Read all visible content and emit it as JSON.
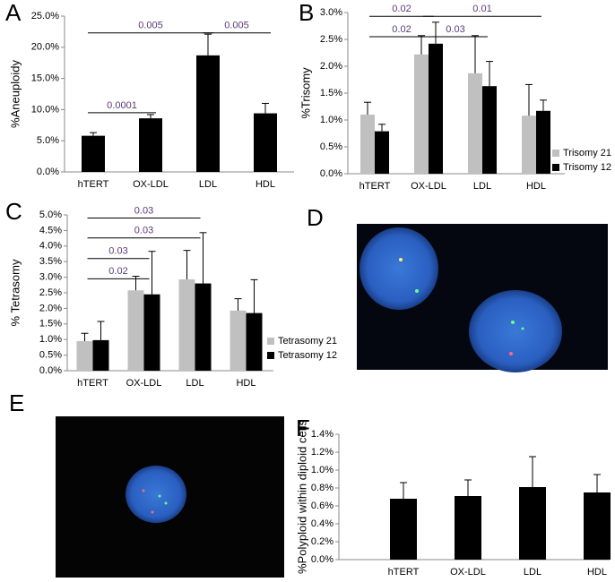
{
  "chart_data": [
    {
      "type": "bar",
      "panel": "A",
      "ylabel": "%Aneuploidy",
      "categories": [
        "hTERT",
        "OX-LDL",
        "LDL",
        "HDL"
      ],
      "series": [
        {
          "color": "#000000",
          "values": [
            5.8,
            8.6,
            18.7,
            9.4
          ],
          "errors": [
            0.5,
            0.6,
            3.4,
            1.6
          ]
        }
      ],
      "ylim": [
        0,
        25
      ],
      "yticks": [
        {
          "value": 0,
          "label": "0.0%"
        },
        {
          "value": 5,
          "label": "5.0%"
        },
        {
          "value": 10,
          "label": "10.0%"
        },
        {
          "value": 15,
          "label": "15.0%"
        },
        {
          "value": 20,
          "label": "20.0%"
        },
        {
          "value": 25,
          "label": "25.0%"
        }
      ],
      "annotations": [
        {
          "text": "0.0001",
          "from": "hTERT",
          "to": "OX-LDL",
          "y": 9.5
        },
        {
          "text": "0.005",
          "from": "hTERT",
          "to": "LDL",
          "y": 22.3
        },
        {
          "text": "0.005",
          "from": "LDL",
          "to": "HDL",
          "y": 22.3
        }
      ]
    },
    {
      "type": "bar",
      "panel": "B",
      "ylabel": "%Trisomy",
      "categories": [
        "hTERT",
        "OX-LDL",
        "LDL",
        "HDL"
      ],
      "series": [
        {
          "name": "Trisomy 21",
          "color": "#c0c0c0",
          "values": [
            1.1,
            2.22,
            1.87,
            1.08
          ],
          "errors": [
            0.23,
            0.35,
            0.7,
            0.58
          ]
        },
        {
          "name": "Trisomy 12",
          "color": "#000000",
          "values": [
            0.79,
            2.42,
            1.63,
            1.17
          ],
          "errors": [
            0.13,
            0.4,
            0.46,
            0.2
          ]
        }
      ],
      "ylim": [
        0,
        3
      ],
      "yticks": [
        {
          "value": 0,
          "label": "0.0%"
        },
        {
          "value": 0.5,
          "label": "0.5%"
        },
        {
          "value": 1,
          "label": "1.0%"
        },
        {
          "value": 1.5,
          "label": "1.5%"
        },
        {
          "value": 2,
          "label": "2.0%"
        },
        {
          "value": 2.5,
          "label": "2.5%"
        },
        {
          "value": 3,
          "label": "3.0%"
        }
      ],
      "legend": "lower right",
      "annotations": [
        {
          "text": "0.02",
          "from": "hTERT",
          "to": "OX-LDL",
          "y": 2.93
        },
        {
          "text": "0.01",
          "from": "OX-LDL",
          "to": "HDL",
          "y": 2.93
        },
        {
          "text": "0.02",
          "from": "hTERT",
          "to": "OX-LDL",
          "y": 2.55
        },
        {
          "text": "0.03",
          "from": "OX-LDL",
          "to": "LDL",
          "y": 2.55
        }
      ]
    },
    {
      "type": "bar",
      "panel": "C",
      "ylabel": "% Tetrasomy",
      "categories": [
        "hTERT",
        "OX-LDL",
        "LDL",
        "HDL"
      ],
      "series": [
        {
          "name": "Tetrasomy 21",
          "color": "#c0c0c0",
          "values": [
            0.95,
            2.58,
            2.93,
            1.93
          ],
          "errors": [
            0.25,
            0.45,
            0.93,
            0.38
          ]
        },
        {
          "name": "Tetrasomy 12",
          "color": "#000000",
          "values": [
            0.98,
            2.45,
            2.8,
            1.85
          ],
          "errors": [
            0.6,
            1.38,
            1.63,
            1.07
          ]
        }
      ],
      "ylim": [
        0,
        5
      ],
      "yticks": [
        {
          "value": 0,
          "label": "0.0%"
        },
        {
          "value": 0.5,
          "label": "0.5%"
        },
        {
          "value": 1,
          "label": "1.0%"
        },
        {
          "value": 1.5,
          "label": "1.5%"
        },
        {
          "value": 2,
          "label": "2.0%"
        },
        {
          "value": 2.5,
          "label": "2.5%"
        },
        {
          "value": 3,
          "label": "3.0%"
        },
        {
          "value": 3.5,
          "label": "3.5%"
        },
        {
          "value": 4,
          "label": "4.0%"
        },
        {
          "value": 4.5,
          "label": "4.5%"
        },
        {
          "value": 5,
          "label": "5.0%"
        }
      ],
      "legend": "lower right",
      "annotations": [
        {
          "text": "0.03",
          "from": "hTERT",
          "to": "LDL",
          "y": 4.9
        },
        {
          "text": "0.03",
          "from": "hTERT",
          "to": "LDL",
          "y": 4.26
        },
        {
          "text": "0.03",
          "from": "hTERT",
          "to": "OX-LDL",
          "y": 3.6
        },
        {
          "text": "0.02",
          "from": "hTERT",
          "to": "OX-LDL",
          "y": 2.95
        }
      ]
    },
    {
      "type": "bar",
      "panel": "F",
      "ylabel": "%Polyploid within diploid cells",
      "categories": [
        "hTERT",
        "OX-LDL",
        "LDL",
        "HDL"
      ],
      "series": [
        {
          "color": "#000000",
          "values": [
            0.68,
            0.71,
            0.81,
            0.75
          ],
          "errors": [
            0.18,
            0.18,
            0.34,
            0.2
          ]
        }
      ],
      "ylim": [
        0,
        1.4
      ],
      "yticks": [
        {
          "value": 0,
          "label": "0.0%"
        },
        {
          "value": 0.2,
          "label": "0.2%"
        },
        {
          "value": 0.4,
          "label": "0.4%"
        },
        {
          "value": 0.6,
          "label": "0.6%"
        },
        {
          "value": 0.8,
          "label": "0.8%"
        },
        {
          "value": 1,
          "label": "1.0%"
        },
        {
          "value": 1.2,
          "label": "1.2%"
        },
        {
          "value": 1.4,
          "label": "1.4%"
        }
      ]
    }
  ],
  "images": [
    {
      "panel": "D"
    },
    {
      "panel": "E"
    }
  ]
}
